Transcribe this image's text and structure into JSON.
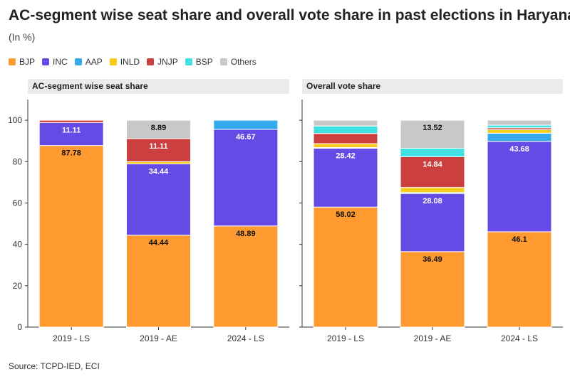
{
  "title": "AC-segment wise seat share and overall vote share in past elections in Haryana",
  "subtitle": "(In %)",
  "source": "Source: TCPD-IED, ECI",
  "legend": [
    {
      "name": "BJP",
      "color": "#ff9a30"
    },
    {
      "name": "INC",
      "color": "#654ae6"
    },
    {
      "name": "AAP",
      "color": "#34aaeb"
    },
    {
      "name": "INLD",
      "color": "#f8cc1b"
    },
    {
      "name": "JNJP",
      "color": "#cc3f3f"
    },
    {
      "name": "BSP",
      "color": "#40e0e3"
    },
    {
      "name": "Others",
      "color": "#c8c8c8"
    }
  ],
  "chart_data": [
    {
      "type": "bar",
      "stacked": true,
      "title": "AC-segment wise seat share",
      "categories": [
        "2019 - LS",
        "2019 - AE",
        "2024 - LS"
      ],
      "ylim": [
        0,
        110
      ],
      "yticks": [
        0,
        20,
        40,
        60,
        80,
        100
      ],
      "grid": false,
      "series": [
        {
          "name": "BJP",
          "values": [
            87.78,
            44.44,
            48.89
          ],
          "labels": [
            "87.78",
            "44.44",
            "48.89"
          ]
        },
        {
          "name": "INC",
          "values": [
            11.11,
            34.44,
            46.67
          ],
          "labels": [
            "11.11",
            "34.44",
            "46.67"
          ]
        },
        {
          "name": "AAP",
          "values": [
            0,
            0,
            4.44
          ],
          "labels": [
            "",
            "",
            ""
          ]
        },
        {
          "name": "INLD",
          "values": [
            0,
            1.11,
            0
          ],
          "labels": [
            "",
            "",
            ""
          ]
        },
        {
          "name": "JNJP",
          "values": [
            1.11,
            11.11,
            0
          ],
          "labels": [
            "",
            "11.11",
            ""
          ]
        },
        {
          "name": "BSP",
          "values": [
            0,
            0,
            0
          ],
          "labels": [
            "",
            "",
            ""
          ]
        },
        {
          "name": "Others",
          "values": [
            0,
            8.89,
            0
          ],
          "labels": [
            "",
            "8.89",
            ""
          ]
        }
      ]
    },
    {
      "type": "bar",
      "stacked": true,
      "title": "Overall vote share",
      "categories": [
        "2019 - LS",
        "2019 - AE",
        "2024 - LS"
      ],
      "ylim": [
        0,
        110
      ],
      "grid": false,
      "series": [
        {
          "name": "BJP",
          "values": [
            58.02,
            36.49,
            46.1
          ],
          "labels": [
            "58.02",
            "36.49",
            "46.1"
          ]
        },
        {
          "name": "INC",
          "values": [
            28.42,
            28.08,
            43.68
          ],
          "labels": [
            "28.42",
            "28.08",
            "43.68"
          ]
        },
        {
          "name": "AAP",
          "values": [
            0.36,
            0.48,
            3.94
          ],
          "labels": [
            "",
            "",
            ""
          ]
        },
        {
          "name": "INLD",
          "values": [
            1.89,
            2.44,
            1.74
          ],
          "labels": [
            "",
            "",
            ""
          ]
        },
        {
          "name": "JNJP",
          "values": [
            4.9,
            14.84,
            0.87
          ],
          "labels": [
            "",
            "14.84",
            ""
          ]
        },
        {
          "name": "BSP",
          "values": [
            3.64,
            4.14,
            1.28
          ],
          "labels": [
            "",
            "",
            ""
          ]
        },
        {
          "name": "Others",
          "values": [
            2.77,
            13.52,
            2.39
          ],
          "labels": [
            "",
            "13.52",
            ""
          ]
        }
      ]
    }
  ]
}
